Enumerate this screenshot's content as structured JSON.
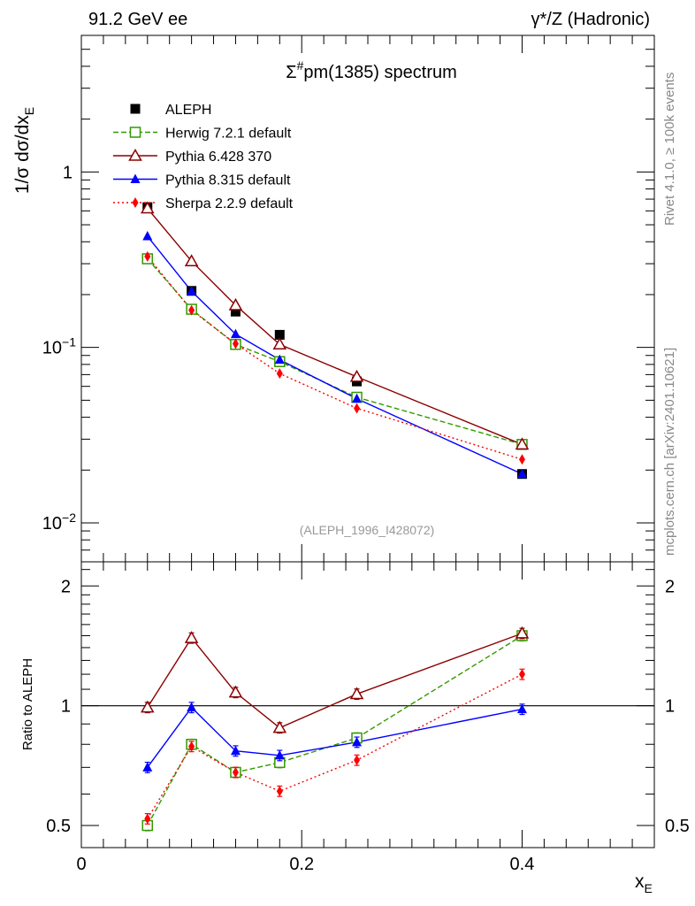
{
  "header": {
    "left": "91.2 GeV ee",
    "right": "γ*/Z (Hadronic)"
  },
  "side_text": {
    "rivet": "Rivet 4.1.0, ≥ 100k events",
    "site": "mcplots.cern.ch [arXiv:2401.10621]"
  },
  "chart_data": [
    {
      "type": "line",
      "panel": "main",
      "title": "Σ#pm(1385) spectrum",
      "title_base": "Σ",
      "title_sup": "#",
      "title_rest": "pm(1385) spectrum",
      "ylabel": "1/σ  dσ/dx",
      "ylabel_sub": "E",
      "yscale": "log",
      "ylim": [
        0.006,
        6.0
      ],
      "xlim": [
        0,
        0.52
      ],
      "y_ticks": [
        {
          "value": 1,
          "label": "1",
          "sup": ""
        },
        {
          "value": 0.1,
          "label": "10",
          "sup": "−1"
        },
        {
          "value": 0.01,
          "label": "10",
          "sup": "−2"
        }
      ],
      "watermark": "(ALEPH_1996_I428072)",
      "legend_position": "top-left",
      "x": [
        0.06,
        0.1,
        0.14,
        0.18,
        0.25,
        0.4
      ],
      "series": [
        {
          "name": "ALEPH",
          "color": "#000000",
          "marker": "square",
          "dash": "none",
          "line": false,
          "values": [
            0.63,
            0.21,
            0.16,
            0.118,
            0.064,
            0.019
          ]
        },
        {
          "name": "Herwig 7.2.1 default",
          "color": "#339900",
          "marker": "open-square",
          "dash": "6,3",
          "line": true,
          "values": [
            0.32,
            0.165,
            0.104,
            0.083,
            0.052,
            0.028
          ]
        },
        {
          "name": "Pythia 6.428 370",
          "color": "#8b0000",
          "marker": "open-triangle",
          "dash": "none",
          "line": true,
          "values": [
            0.62,
            0.31,
            0.174,
            0.104,
            0.068,
            0.028
          ]
        },
        {
          "name": "Pythia 8.315 default",
          "color": "#0000ff",
          "marker": "triangle",
          "dash": "none",
          "line": true,
          "values": [
            0.43,
            0.209,
            0.119,
            0.085,
            0.051,
            0.019
          ]
        },
        {
          "name": "Sherpa 2.2.9 default",
          "color": "#ff0000",
          "marker": "diamond",
          "dash": "2,3",
          "line": true,
          "values": [
            0.33,
            0.163,
            0.105,
            0.071,
            0.045,
            0.023
          ]
        }
      ]
    },
    {
      "type": "line",
      "panel": "ratio",
      "ylabel": "Ratio to ALEPH",
      "xlabel": "x",
      "xlabel_sub": "E",
      "yscale": "log",
      "ylim": [
        0.44,
        2.3
      ],
      "xlim": [
        0,
        0.52
      ],
      "y_ticks": [
        {
          "value": 0.5,
          "label": "0.5"
        },
        {
          "value": 1,
          "label": "1"
        },
        {
          "value": 2,
          "label": "2"
        }
      ],
      "x_ticks": [
        {
          "value": 0,
          "label": "0"
        },
        {
          "value": 0.2,
          "label": "0.2"
        },
        {
          "value": 0.4,
          "label": "0.4"
        }
      ],
      "reference": 1,
      "x": [
        0.06,
        0.1,
        0.14,
        0.18,
        0.25,
        0.4
      ],
      "series": [
        {
          "name": "Herwig 7.2.1 default",
          "color": "#339900",
          "marker": "open-square",
          "dash": "6,3",
          "values": [
            0.5,
            0.8,
            0.68,
            0.72,
            0.83,
            1.5
          ]
        },
        {
          "name": "Pythia 6.428 370",
          "color": "#8b0000",
          "marker": "open-triangle",
          "dash": "none",
          "values": [
            0.99,
            1.48,
            1.08,
            0.88,
            1.07,
            1.52
          ]
        },
        {
          "name": "Pythia 8.315 default",
          "color": "#0000ff",
          "marker": "triangle",
          "dash": "none",
          "values": [
            0.7,
            0.99,
            0.77,
            0.75,
            0.81,
            0.98
          ]
        },
        {
          "name": "Sherpa 2.2.9 default",
          "color": "#ff0000",
          "marker": "diamond",
          "dash": "2,3",
          "values": [
            0.52,
            0.79,
            0.68,
            0.61,
            0.73,
            1.2
          ]
        }
      ]
    }
  ]
}
